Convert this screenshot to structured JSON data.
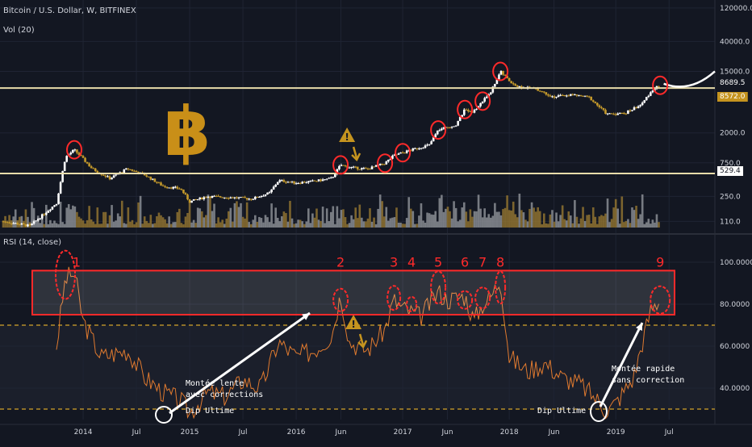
{
  "header": {
    "title": "Bitcoin / U.S. Dollar, W, BITFINEX",
    "vol_label": "Vol (20)",
    "rsi_label": "RSI (14, close)"
  },
  "colors": {
    "background": "#131722",
    "grid": "#1f2433",
    "candle_up": "#ffffff",
    "candle_down": "#c59a2b",
    "volume_up": "#8a8d93",
    "volume_down": "#8f7230",
    "rsi_line": "#e07a2f",
    "annotation_red": "#ff2a2a",
    "level_line": "#e8dcaa",
    "dashed_band": "#d4a32a",
    "arrow": "#ffffff",
    "bitcoin_logo": "#c98f18"
  },
  "annotations": {
    "warning_icon": "warning-icon",
    "text_left_1": "Montée lente",
    "text_left_2": "avec corrections",
    "text_right_1": "Montée rapide",
    "text_right_2": "sans correction",
    "dip_left": "Dip Ultime",
    "dip_right": "Dip Ultime",
    "rsi_numbers": [
      "1",
      "2",
      "3",
      "4",
      "5",
      "6",
      "7",
      "8",
      "9"
    ]
  },
  "chart_data": [
    {
      "type": "candlestick",
      "title": "Bitcoin / U.S. Dollar, W, BITFINEX",
      "x_ticks": [
        "2014",
        "Jul",
        "2015",
        "Jul",
        "2016",
        "Jun",
        "2017",
        "Jun",
        "2018",
        "Jun",
        "2019",
        "Jul"
      ],
      "y_scale": "log",
      "y_ticks": [
        "110.0",
        "250.0",
        "750.0",
        "2000.0",
        "15000.0",
        "40000.0",
        "120000.0"
      ],
      "price_labels": {
        "current": "8689.5",
        "secondary": "8572.0",
        "support": "529.4"
      },
      "levels": [
        8689.5,
        529.4
      ],
      "series": [
        {
          "name": "Bitcoin / U.S. Dollar",
          "points": [
            [
              "2013-04",
              110
            ],
            [
              "2013-07",
              95
            ],
            [
              "2013-10",
              200
            ],
            [
              "2013-11",
              900
            ],
            [
              "2013-12",
              1150
            ],
            [
              "2014-01",
              850
            ],
            [
              "2014-02",
              620
            ],
            [
              "2014-04",
              450
            ],
            [
              "2014-06",
              620
            ],
            [
              "2014-08",
              500
            ],
            [
              "2014-10",
              350
            ],
            [
              "2014-12",
              320
            ],
            [
              "2015-01",
              210
            ],
            [
              "2015-03",
              250
            ],
            [
              "2015-06",
              240
            ],
            [
              "2015-08",
              230
            ],
            [
              "2015-10",
              280
            ],
            [
              "2015-11",
              420
            ],
            [
              "2016-01",
              390
            ],
            [
              "2016-03",
              410
            ],
            [
              "2016-05",
              450
            ],
            [
              "2016-06",
              700
            ],
            [
              "2016-07",
              650
            ],
            [
              "2016-09",
              610
            ],
            [
              "2016-11",
              740
            ],
            [
              "2016-12",
              950
            ],
            [
              "2017-02",
              1150
            ],
            [
              "2017-04",
              1350
            ],
            [
              "2017-05",
              2200
            ],
            [
              "2017-07",
              2600
            ],
            [
              "2017-08",
              4300
            ],
            [
              "2017-09",
              4000
            ],
            [
              "2017-11",
              8000
            ],
            [
              "2017-12",
              15000
            ],
            [
              "2018-01",
              11000
            ],
            [
              "2018-02",
              9000
            ],
            [
              "2018-04",
              8500
            ],
            [
              "2018-06",
              6500
            ],
            [
              "2018-08",
              7000
            ],
            [
              "2018-10",
              6400
            ],
            [
              "2018-12",
              3700
            ],
            [
              "2019-02",
              3800
            ],
            [
              "2019-04",
              5200
            ],
            [
              "2019-05",
              8000
            ],
            [
              "2019-06",
              9500
            ]
          ]
        }
      ]
    },
    {
      "type": "line",
      "title": "RSI (14, close)",
      "y_ticks": [
        "40.0000",
        "60.0000",
        "80.0000",
        "100.0000"
      ],
      "ylim": [
        30,
        100
      ],
      "dashed_levels": [
        70,
        30
      ],
      "overbought_zone": [
        75,
        96
      ],
      "series": [
        {
          "name": "RSI (14, close)",
          "points": [
            [
              "2013-10",
              60
            ],
            [
              "2013-11",
              92
            ],
            [
              "2013-12",
              95
            ],
            [
              "2014-01",
              72
            ],
            [
              "2014-03",
              55
            ],
            [
              "2014-06",
              58
            ],
            [
              "2014-08",
              45
            ],
            [
              "2014-10",
              38
            ],
            [
              "2014-12",
              34
            ],
            [
              "2015-01",
              28
            ],
            [
              "2015-03",
              38
            ],
            [
              "2015-05",
              36
            ],
            [
              "2015-07",
              44
            ],
            [
              "2015-09",
              40
            ],
            [
              "2015-11",
              62
            ],
            [
              "2016-01",
              55
            ],
            [
              "2016-03",
              58
            ],
            [
              "2016-05",
              65
            ],
            [
              "2016-06",
              85
            ],
            [
              "2016-07",
              62
            ],
            [
              "2016-09",
              58
            ],
            [
              "2016-11",
              68
            ],
            [
              "2016-12",
              82
            ],
            [
              "2017-01",
              78
            ],
            [
              "2017-03",
              74
            ],
            [
              "2017-05",
              86
            ],
            [
              "2017-06",
              82
            ],
            [
              "2017-08",
              84
            ],
            [
              "2017-09",
              72
            ],
            [
              "2017-10",
              80
            ],
            [
              "2017-11",
              84
            ],
            [
              "2017-12",
              92
            ],
            [
              "2018-01",
              55
            ],
            [
              "2018-03",
              48
            ],
            [
              "2018-05",
              52
            ],
            [
              "2018-07",
              45
            ],
            [
              "2018-09",
              42
            ],
            [
              "2018-11",
              34
            ],
            [
              "2018-12",
              29
            ],
            [
              "2019-01",
              33
            ],
            [
              "2019-03",
              45
            ],
            [
              "2019-04",
              62
            ],
            [
              "2019-05",
              78
            ],
            [
              "2019-06",
              82
            ]
          ]
        }
      ]
    }
  ]
}
